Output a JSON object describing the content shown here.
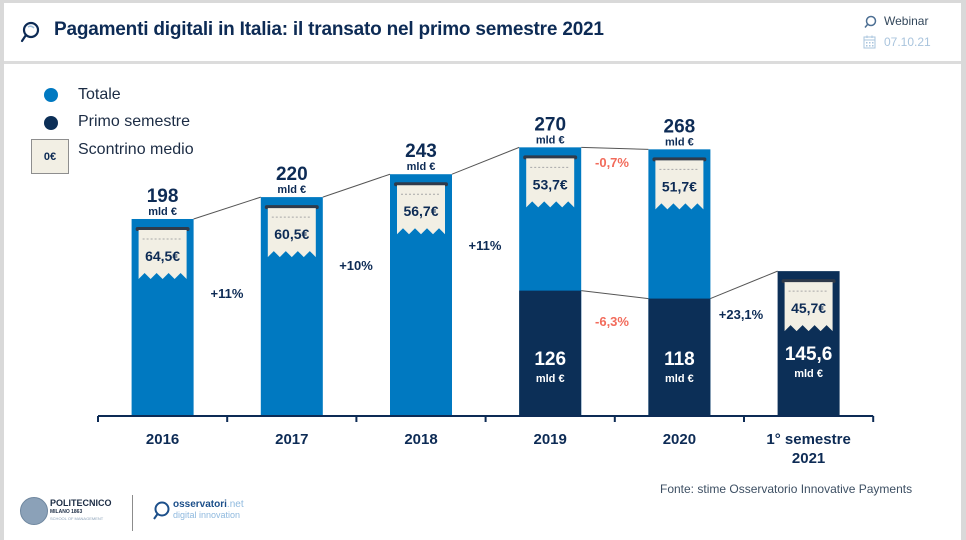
{
  "header": {
    "title": "Pagamenti digitali in Italia: il transato nel primo semestre 2021",
    "title_icon": "magnifier-speech-icon",
    "event_label": "Webinar",
    "event_icon": "magnifier-speech-icon",
    "date": "07.10.21",
    "date_icon": "calendar-icon"
  },
  "legend": {
    "items": [
      {
        "label": "Totale",
        "color": "#0079c1",
        "shape": "dot"
      },
      {
        "label": "Primo semestre",
        "color": "#0c2f57",
        "shape": "dot"
      },
      {
        "label": "Scontrino medio",
        "shape": "receipt",
        "sample": "0€"
      }
    ]
  },
  "colors": {
    "totale": "#0079c1",
    "primo_semestre": "#0c2f57",
    "receipt_bg": "#f2efe4",
    "text_dark": "#0d2b55",
    "negative": "#f26b5b"
  },
  "chart_data": {
    "type": "bar",
    "title": "Pagamenti digitali in Italia: il transato nel primo semestre 2021",
    "xlabel": "",
    "ylabel": "",
    "unit": "mld €",
    "ylim": [
      0,
      300
    ],
    "grid": false,
    "legend_position": "top-left",
    "categories": [
      "2016",
      "2017",
      "2018",
      "2019",
      "2020",
      "1° semestre 2021"
    ],
    "category_lines": [
      [
        "2016"
      ],
      [
        "2017"
      ],
      [
        "2018"
      ],
      [
        "2019"
      ],
      [
        "2020"
      ],
      [
        "1° semestre",
        "2021"
      ]
    ],
    "series": [
      {
        "name": "Totale",
        "values": [
          198,
          220,
          243,
          270,
          268,
          null
        ],
        "labels": [
          "198",
          "220",
          "243",
          "270",
          "268",
          null
        ]
      },
      {
        "name": "Primo semestre",
        "values": [
          null,
          null,
          null,
          126,
          118,
          145.6
        ],
        "labels": [
          null,
          null,
          null,
          "126",
          "118",
          "145,6"
        ]
      }
    ],
    "value_unit_label": "mld €",
    "scontrino_medio": {
      "name": "Scontrino medio",
      "values": [
        "64,5€",
        "60,5€",
        "56,7€",
        "53,7€",
        "51,7€",
        "45,7€"
      ]
    },
    "growth_annotations": [
      {
        "between": [
          "2016",
          "2017"
        ],
        "label": "+11%",
        "series": "Totale",
        "negative": false
      },
      {
        "between": [
          "2017",
          "2018"
        ],
        "label": "+10%",
        "series": "Totale",
        "negative": false
      },
      {
        "between": [
          "2018",
          "2019"
        ],
        "label": "+11%",
        "series": "Totale",
        "negative": false
      },
      {
        "between": [
          "2019",
          "2020"
        ],
        "label": "-0,7%",
        "series": "Totale",
        "negative": true
      },
      {
        "between": [
          "2019",
          "2020"
        ],
        "label": "-6,3%",
        "series": "Primo semestre",
        "negative": true
      },
      {
        "between": [
          "2020",
          "1° semestre 2021"
        ],
        "label": "+23,1%",
        "series": "Primo semestre",
        "negative": false
      }
    ]
  },
  "footer": {
    "source": "Fonte: stime Osservatorio Innovative Payments",
    "logo_politecnico": {
      "name": "POLITECNICO",
      "sub": "MILANO 1863",
      "sub2": "SCHOOL OF MANAGEMENT"
    },
    "logo_osservatori": {
      "name": "osservatori",
      "suffix": ".net",
      "sub": "digital innovation"
    }
  }
}
